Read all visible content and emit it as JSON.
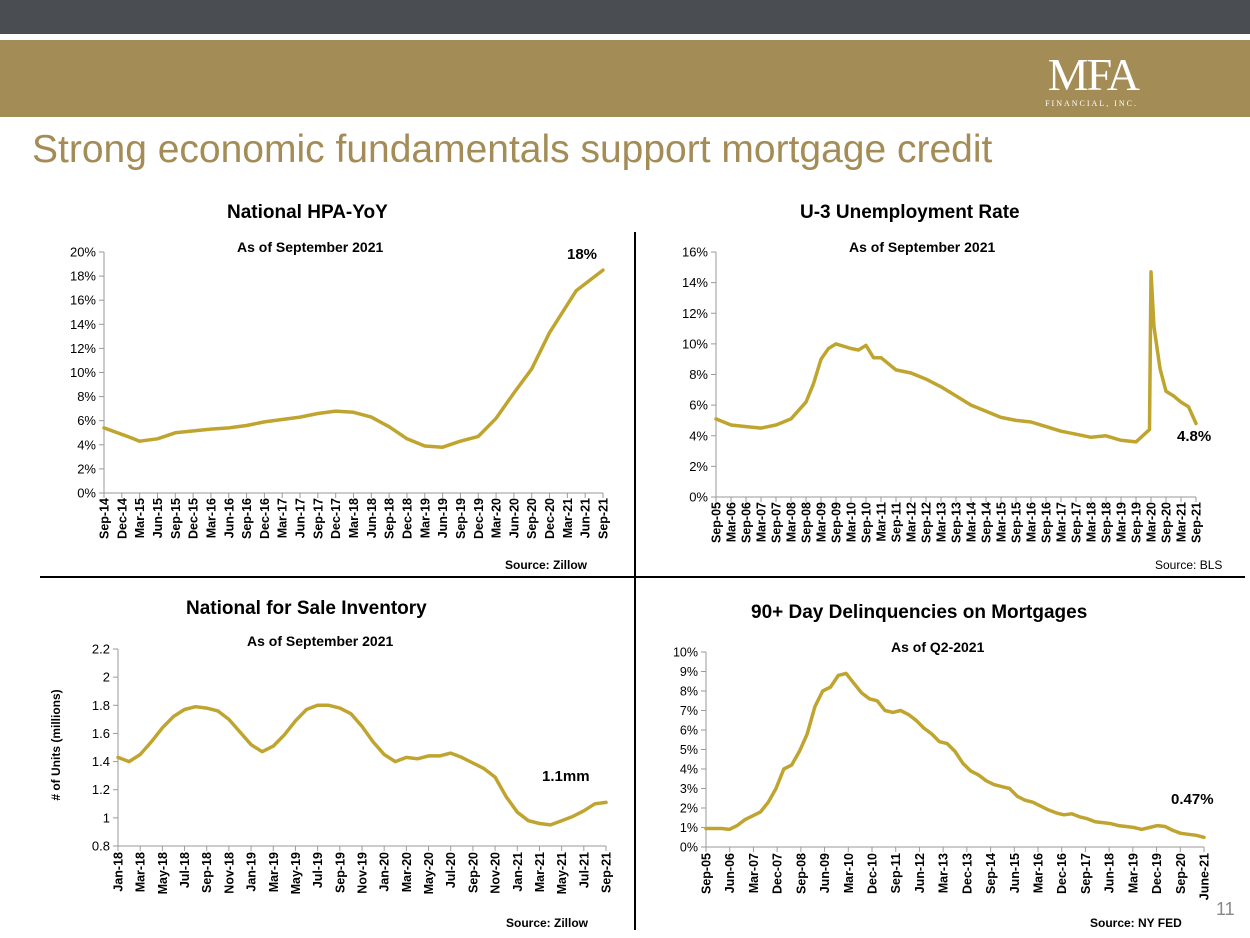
{
  "header": {
    "logo_main": "MFA",
    "logo_sub": "FINANCIAL, INC.",
    "title": "Strong economic fundamentals support mortgage credit",
    "page_number": "11"
  },
  "colors": {
    "line": "#bfa52f",
    "header_dark": "#4a4d52",
    "header_gold": "#a38c55"
  },
  "chart_data": [
    {
      "type": "line",
      "title": "National HPA-YoY",
      "subtitle": "As of September 2021",
      "source": "Source: Zillow",
      "annotation": "18%",
      "ylim": [
        0,
        20
      ],
      "y_ticks": [
        "0%",
        "2%",
        "4%",
        "6%",
        "8%",
        "10%",
        "12%",
        "14%",
        "16%",
        "18%",
        "20%"
      ],
      "x_ticks": [
        "Sep-14",
        "Dec-14",
        "Mar-15",
        "Jun-15",
        "Sep-15",
        "Dec-15",
        "Mar-16",
        "Jun-16",
        "Sep-16",
        "Dec-16",
        "Mar-17",
        "Jun-17",
        "Sep-17",
        "Dec-17",
        "Mar-18",
        "Jun-18",
        "Sep-18",
        "Dec-18",
        "Mar-19",
        "Jun-19",
        "Sep-19",
        "Dec-19",
        "Mar-20",
        "Jun-20",
        "Sep-20",
        "Dec-20",
        "Mar-21",
        "Jun-21",
        "Sep-21"
      ],
      "series": [
        {
          "values": [
            5.4,
            4.6,
            4.3,
            4.5,
            5.0,
            5.3,
            5.4,
            5.6,
            5.9,
            6.1,
            6.3,
            6.6,
            6.8,
            6.7,
            6.3,
            5.5,
            4.5,
            3.9,
            3.8,
            4.3,
            4.7,
            6.2,
            8.3,
            10.3,
            13.3,
            16.8,
            18.5
          ],
          "x": [
            0,
            1.5,
            2,
            3,
            4,
            6,
            7,
            8,
            9,
            10,
            11,
            12,
            13,
            14,
            15,
            16,
            17,
            18,
            19,
            20,
            21,
            22,
            23,
            24,
            25,
            26.5,
            28
          ]
        }
      ]
    },
    {
      "type": "line",
      "title": "U-3 Unemployment Rate",
      "subtitle": "As of September 2021",
      "source": "Source: BLS",
      "annotation": "4.8%",
      "ylim": [
        0,
        16
      ],
      "y_ticks": [
        "0%",
        "2%",
        "4%",
        "6%",
        "8%",
        "10%",
        "12%",
        "14%",
        "16%"
      ],
      "x_ticks": [
        "Sep-05",
        "Mar-06",
        "Sep-06",
        "Mar-07",
        "Sep-07",
        "Mar-08",
        "Sep-08",
        "Mar-09",
        "Sep-09",
        "Mar-10",
        "Sep-10",
        "Mar-11",
        "Sep-11",
        "Mar-12",
        "Sep-12",
        "Mar-13",
        "Sep-13",
        "Mar-14",
        "Sep-14",
        "Mar-15",
        "Sep-15",
        "Mar-16",
        "Sep-16",
        "Mar-17",
        "Sep-17",
        "Mar-18",
        "Sep-18",
        "Mar-19",
        "Sep-19",
        "Mar-20",
        "Sep-20",
        "Mar-21",
        "Sep-21"
      ],
      "series": [
        {
          "x": [
            0,
            1,
            2,
            3,
            4,
            5,
            6,
            6.5,
            7,
            7.5,
            8,
            9,
            9.5,
            10,
            10.5,
            11,
            12,
            13,
            14,
            15,
            16,
            17,
            18,
            19,
            20,
            21,
            22,
            23,
            24,
            25,
            26,
            27,
            28,
            28.9,
            29.0,
            29.2,
            29.6,
            30,
            30.5,
            31,
            31.5,
            32
          ],
          "values": [
            5.1,
            4.7,
            4.6,
            4.5,
            4.7,
            5.1,
            6.2,
            7.4,
            9.0,
            9.7,
            10.0,
            9.7,
            9.6,
            9.9,
            9.1,
            9.1,
            8.3,
            8.1,
            7.7,
            7.2,
            6.6,
            6.0,
            5.6,
            5.2,
            5.0,
            4.9,
            4.6,
            4.3,
            4.1,
            3.9,
            4.0,
            3.7,
            3.6,
            4.4,
            14.7,
            11.1,
            8.4,
            6.9,
            6.6,
            6.2,
            5.9,
            4.8
          ]
        }
      ]
    },
    {
      "type": "line",
      "title": "National for Sale Inventory",
      "subtitle": "As of September 2021",
      "source": "Source: Zillow",
      "annotation": "1.1mm",
      "ylabel": "# of Units (millions)",
      "ylim": [
        0.8,
        2.2
      ],
      "y_ticks": [
        "0.8",
        "1",
        "1.2",
        "1.4",
        "1.6",
        "1.8",
        "2",
        "2.2"
      ],
      "x_ticks": [
        "Jan-18",
        "Mar-18",
        "May-18",
        "Jul-18",
        "Sep-18",
        "Nov-18",
        "Jan-19",
        "Mar-19",
        "May-19",
        "Jul-19",
        "Sep-19",
        "Nov-19",
        "Jan-20",
        "Mar-20",
        "May-20",
        "Jul-20",
        "Sep-20",
        "Nov-20",
        "Jan-21",
        "Mar-21",
        "May-21",
        "Jul-21",
        "Sep-21"
      ],
      "series": [
        {
          "values": [
            1.43,
            1.4,
            1.45,
            1.54,
            1.64,
            1.72,
            1.77,
            1.79,
            1.78,
            1.76,
            1.7,
            1.61,
            1.52,
            1.47,
            1.51,
            1.59,
            1.69,
            1.77,
            1.8,
            1.8,
            1.78,
            1.74,
            1.65,
            1.54,
            1.45,
            1.4,
            1.43,
            1.42,
            1.44,
            1.44,
            1.46,
            1.43,
            1.39,
            1.35,
            1.29,
            1.15,
            1.04,
            0.98,
            0.96,
            0.95,
            0.98,
            1.01,
            1.05,
            1.1,
            1.11
          ]
        }
      ]
    },
    {
      "type": "line",
      "title": "90+ Day Delinquencies on Mortgages",
      "subtitle": "As of Q2-2021",
      "source": "Source: NY FED",
      "annotation": "0.47%",
      "ylim": [
        0,
        10
      ],
      "y_ticks": [
        "0%",
        "1%",
        "2%",
        "3%",
        "4%",
        "5%",
        "6%",
        "7%",
        "8%",
        "9%",
        "10%"
      ],
      "x_ticks": [
        "Sep-05",
        "Jun-06",
        "Mar-07",
        "Dec-07",
        "Sep-08",
        "Jun-09",
        "Mar-10",
        "Dec-10",
        "Sep-11",
        "Jun-12",
        "Mar-13",
        "Dec-13",
        "Sep-14",
        "Jun-15",
        "Mar-16",
        "Dec-16",
        "Sep-17",
        "Jun-18",
        "Mar-19",
        "Dec-19",
        "Sep-20",
        "June-21"
      ],
      "series": [
        {
          "values": [
            0.95,
            0.95,
            0.95,
            0.9,
            1.1,
            1.4,
            1.6,
            1.8,
            2.3,
            3.0,
            4.0,
            4.2,
            4.9,
            5.8,
            7.2,
            8.0,
            8.2,
            8.8,
            8.9,
            8.4,
            7.9,
            7.6,
            7.5,
            7.0,
            6.9,
            7.0,
            6.8,
            6.5,
            6.1,
            5.8,
            5.4,
            5.3,
            4.9,
            4.3,
            3.9,
            3.7,
            3.4,
            3.2,
            3.1,
            3.0,
            2.6,
            2.4,
            2.3,
            2.1,
            1.9,
            1.75,
            1.65,
            1.7,
            1.55,
            1.45,
            1.3,
            1.25,
            1.2,
            1.1,
            1.05,
            1.0,
            0.9,
            1.0,
            1.1,
            1.05,
            0.85,
            0.7,
            0.65,
            0.6,
            0.5
          ]
        }
      ]
    }
  ]
}
